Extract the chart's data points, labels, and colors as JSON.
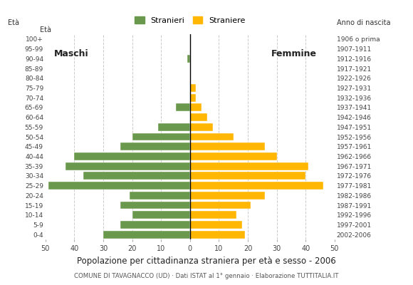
{
  "age_groups": [
    "0-4",
    "5-9",
    "10-14",
    "15-19",
    "20-24",
    "25-29",
    "30-34",
    "35-39",
    "40-44",
    "45-49",
    "50-54",
    "55-59",
    "60-64",
    "65-69",
    "70-74",
    "75-79",
    "80-84",
    "85-89",
    "90-94",
    "95-99",
    "100+"
  ],
  "birth_years": [
    "2002-2006",
    "1997-2001",
    "1992-1996",
    "1987-1991",
    "1982-1986",
    "1977-1981",
    "1972-1976",
    "1967-1971",
    "1962-1966",
    "1957-1961",
    "1952-1956",
    "1947-1951",
    "1942-1946",
    "1937-1941",
    "1932-1936",
    "1927-1931",
    "1922-1926",
    "1917-1921",
    "1912-1916",
    "1907-1911",
    "1906 o prima"
  ],
  "males": [
    30,
    24,
    20,
    24,
    21,
    49,
    37,
    43,
    40,
    24,
    20,
    11,
    0,
    5,
    0,
    0,
    0,
    0,
    1,
    0,
    0
  ],
  "females": [
    19,
    18,
    16,
    21,
    26,
    46,
    40,
    41,
    30,
    26,
    15,
    8,
    6,
    4,
    2,
    2,
    0,
    0,
    0,
    0,
    0
  ],
  "male_color": "#6a994e",
  "female_color": "#ffb703",
  "background_color": "#ffffff",
  "grid_color": "#cccccc",
  "title": "Popolazione per cittadinanza straniera per età e sesso - 2006",
  "subtitle": "COMUNE DI TAVAGNACCO (UD) · Dati ISTAT al 1° gennaio · Elaborazione TUTTITALIA.IT",
  "legend_male": "Stranieri",
  "legend_female": "Straniere",
  "label_eta": "Età",
  "label_anno": "Anno di nascita",
  "label_maschi": "Maschi",
  "label_femmine": "Femmine",
  "xlim": 50
}
